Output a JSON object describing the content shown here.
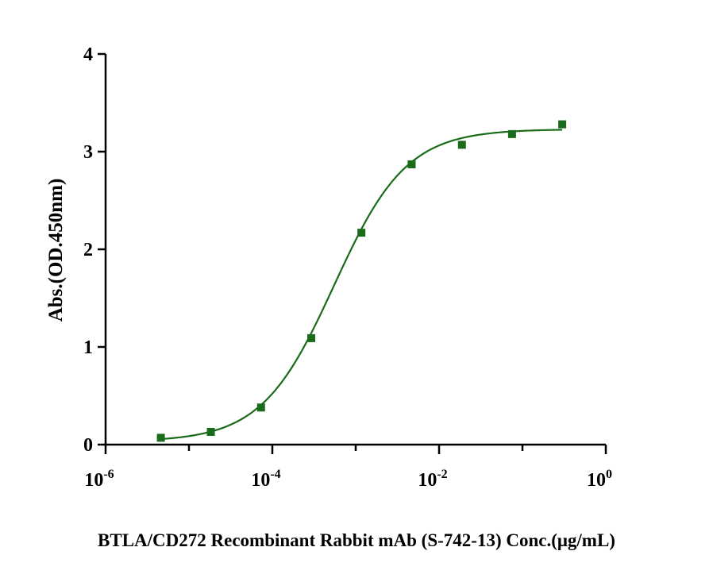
{
  "chart_data": {
    "type": "scatter",
    "title": "",
    "xlabel": "BTLA/CD272 Recombinant Rabbit mAb (S-742-13) Conc.(μg/mL)",
    "ylabel": "Abs.(OD.450nm)",
    "xscale": "log",
    "xlim": [
      1e-06,
      1
    ],
    "ylim": [
      0,
      4
    ],
    "x_ticks": [
      {
        "base": "10",
        "exp": "-6"
      },
      {
        "base": "10",
        "exp": "-4"
      },
      {
        "base": "10",
        "exp": "-2"
      },
      {
        "base": "10",
        "exp": "0"
      }
    ],
    "y_ticks": [
      "0",
      "1",
      "2",
      "3",
      "4"
    ],
    "grid": false,
    "legend": "none",
    "series": [
      {
        "marker": "square",
        "color": "#1a6b1a",
        "x": [
          4.6e-06,
          1.83e-05,
          7.32e-05,
          0.000293,
          0.00117,
          0.00469,
          0.0188,
          0.075,
          0.3
        ],
        "y": [
          0.07,
          0.13,
          0.38,
          1.09,
          2.17,
          2.87,
          3.07,
          3.18,
          3.28
        ]
      }
    ],
    "fit": {
      "type": "4PL",
      "color": "#1a6b1a",
      "bottom": 0.03,
      "top": 3.23,
      "ec50": 0.00055,
      "hill": 1.0
    }
  }
}
